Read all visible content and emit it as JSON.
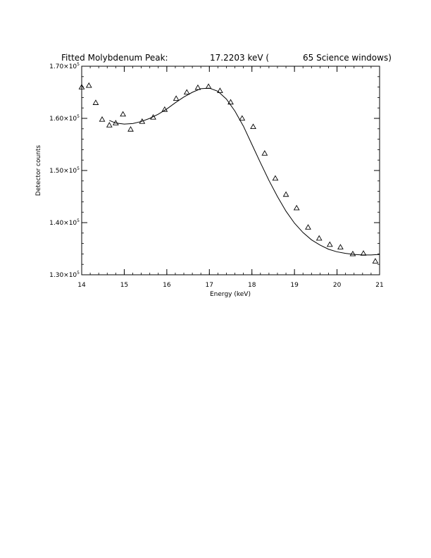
{
  "chart_data": {
    "type": "scatter",
    "title": {
      "part1": "Fitted Molybdenum Peak:",
      "part2": "17.2203 keV (",
      "part3": "65 Science windows)"
    },
    "xlabel": "Energy (keV)",
    "ylabel": "Detector counts",
    "xlim": [
      14,
      21
    ],
    "ylim": [
      130000,
      170000
    ],
    "x_ticks": [
      {
        "value": 14,
        "label": "14"
      },
      {
        "value": 15,
        "label": "15"
      },
      {
        "value": 16,
        "label": "16"
      },
      {
        "value": 17,
        "label": "17"
      },
      {
        "value": 18,
        "label": "18"
      },
      {
        "value": 19,
        "label": "19"
      },
      {
        "value": 20,
        "label": "20"
      },
      {
        "value": 21,
        "label": "21"
      }
    ],
    "y_ticks": [
      {
        "value": 130000,
        "mantissa": "1.30×10",
        "exp": "5"
      },
      {
        "value": 140000,
        "mantissa": "1.40×10",
        "exp": "5"
      },
      {
        "value": 150000,
        "mantissa": "1.50×10",
        "exp": "5"
      },
      {
        "value": 160000,
        "mantissa": "1.60×10",
        "exp": "5"
      },
      {
        "value": 170000,
        "mantissa": "1.70×10",
        "exp": "5"
      }
    ],
    "grid": false,
    "series": [
      {
        "kind": "points",
        "marker": "triangle",
        "x": [
          14.0,
          14.17,
          14.33,
          14.48,
          14.65,
          14.8,
          14.97,
          15.15,
          15.42,
          15.68,
          15.95,
          16.22,
          16.47,
          16.73,
          16.98,
          17.25,
          17.5,
          17.77,
          18.03,
          18.3,
          18.55,
          18.8,
          19.05,
          19.32,
          19.58,
          19.83,
          20.08,
          20.37,
          20.62,
          20.9
        ],
        "y": [
          166000,
          166300,
          163000,
          159800,
          158700,
          159100,
          160800,
          157900,
          159400,
          160200,
          161700,
          163800,
          165000,
          165900,
          166100,
          165300,
          163100,
          160000,
          158400,
          153300,
          148500,
          145400,
          142800,
          139100,
          137000,
          135800,
          135300,
          134000,
          134100,
          132600
        ]
      },
      {
        "kind": "fit",
        "x": [
          14.65,
          14.8,
          15.0,
          15.2,
          15.4,
          15.6,
          15.8,
          16.0,
          16.2,
          16.4,
          16.6,
          16.8,
          17.0,
          17.2,
          17.4,
          17.6,
          17.8,
          18.0,
          18.2,
          18.4,
          18.6,
          18.8,
          19.0,
          19.2,
          19.4,
          19.6,
          19.8,
          20.0,
          20.2,
          20.4,
          20.6,
          20.8,
          21.0
        ],
        "y": [
          159600,
          159100,
          158900,
          159000,
          159400,
          160000,
          160800,
          161800,
          163000,
          164100,
          165000,
          165700,
          165800,
          165200,
          163700,
          161400,
          158500,
          155000,
          151500,
          148100,
          145000,
          142200,
          139900,
          138100,
          136700,
          135700,
          134900,
          134400,
          134100,
          133900,
          133800,
          133800,
          133900
        ]
      }
    ]
  }
}
